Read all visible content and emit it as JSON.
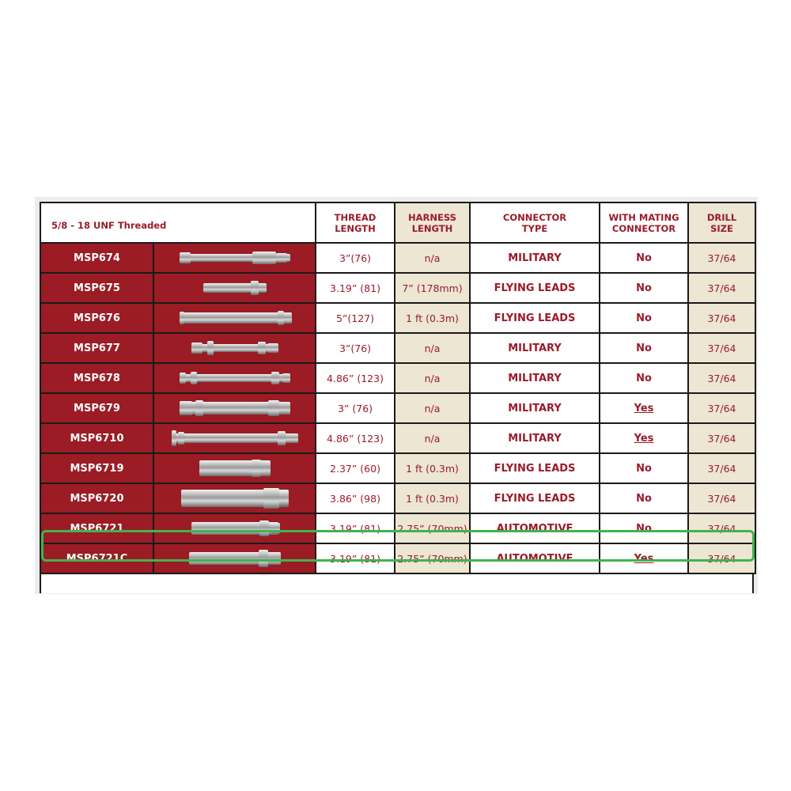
{
  "title": "5/8 - 18 UNF  Threaded",
  "headers": {
    "thread_length": [
      "THREAD",
      "LENGTH"
    ],
    "harness_length": [
      "HARNESS",
      "LENGTH"
    ],
    "connector_type": [
      "CONNECTOR",
      "TYPE"
    ],
    "with_mating_connector": [
      "WITH MATING",
      "CONNECTOR"
    ],
    "drill_size": [
      "DRILL",
      "SIZE"
    ]
  },
  "rows": [
    {
      "part": "MSP674",
      "thread": "3”(76)",
      "harness": "n/a",
      "connector": "MILITARY",
      "mating": "No",
      "drill": "37/64"
    },
    {
      "part": "MSP675",
      "thread": "3.19” (81)",
      "harness": "7” (178mm)",
      "connector": "FLYING LEADS",
      "mating": "No",
      "drill": "37/64"
    },
    {
      "part": "MSP676",
      "thread": "5”(127)",
      "harness": "1 ft (0.3m)",
      "connector": "FLYING LEADS",
      "mating": "No",
      "drill": "37/64"
    },
    {
      "part": "MSP677",
      "thread": "3”(76)",
      "harness": "n/a",
      "connector": "MILITARY",
      "mating": "No",
      "drill": "37/64"
    },
    {
      "part": "MSP678",
      "thread": "4.86” (123)",
      "harness": "n/a",
      "connector": "MILITARY",
      "mating": "No",
      "drill": "37/64"
    },
    {
      "part": "MSP679",
      "thread": "3” (76)",
      "harness": "n/a",
      "connector": "MILITARY",
      "mating": "Yes",
      "drill": "37/64"
    },
    {
      "part": "MSP6710",
      "thread": "4.86” (123)",
      "harness": "n/a",
      "connector": "MILITARY",
      "mating": "Yes",
      "drill": "37/64"
    },
    {
      "part": "MSP6719",
      "thread": "2.37” (60)",
      "harness": "1 ft (0.3m)",
      "connector": "FLYING LEADS",
      "mating": "No",
      "drill": "37/64"
    },
    {
      "part": "MSP6720",
      "thread": "3.86” (98)",
      "harness": "1 ft (0.3m)",
      "connector": "FLYING LEADS",
      "mating": "No",
      "drill": "37/64"
    },
    {
      "part": "MSP6721",
      "thread": "3.19” (81)",
      "harness": "2.75” (70mm)",
      "connector": "AUTOMOTIVE",
      "mating": "No",
      "drill": "37/64",
      "highlighted": true
    },
    {
      "part": "MSP6721C",
      "thread": "3.19” (81)",
      "harness": "2.75” (70mm)",
      "connector": "AUTOMOTIVE",
      "mating": "Yes",
      "drill": "37/64"
    }
  ],
  "colors": {
    "brand_red": "#9b1c24",
    "beige": "#ece6d2",
    "text_red": "#9b1b2a",
    "highlight": "#3fb44d"
  }
}
